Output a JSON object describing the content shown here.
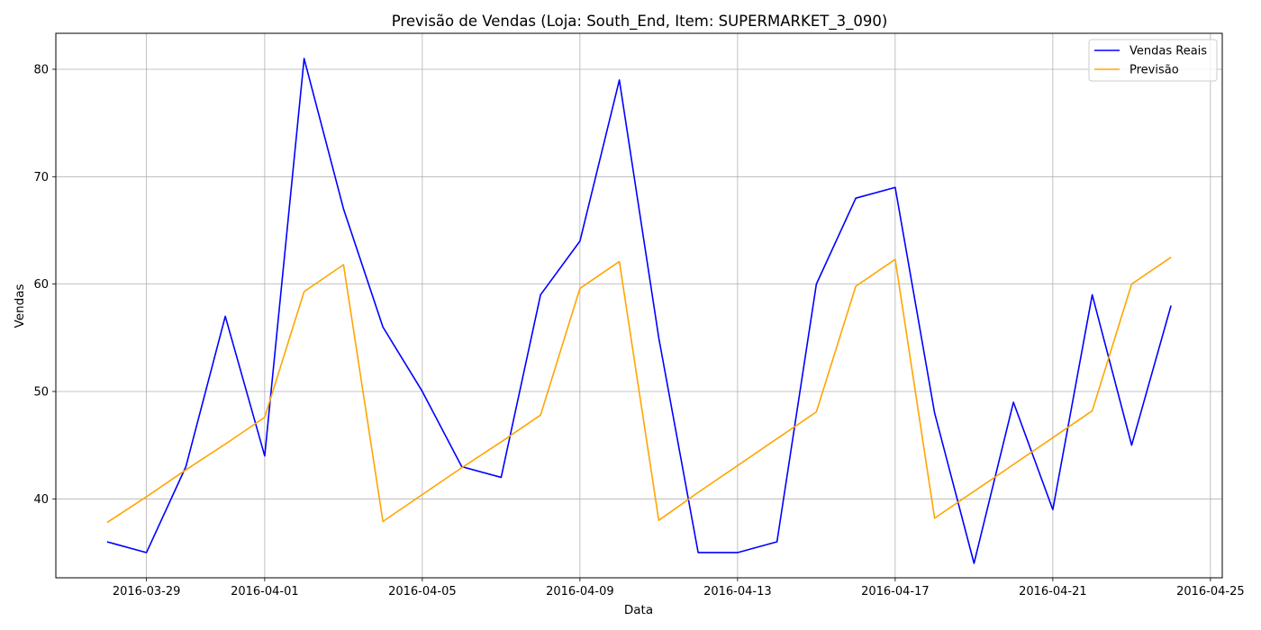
{
  "chart_data": {
    "type": "line",
    "title": "Previsão de Vendas (Loja: South_End, Item: SUPERMARKET_3_090)",
    "xlabel": "Data",
    "ylabel": "Vendas",
    "x": [
      "2016-03-28",
      "2016-03-29",
      "2016-03-30",
      "2016-03-31",
      "2016-04-01",
      "2016-04-02",
      "2016-04-03",
      "2016-04-04",
      "2016-04-05",
      "2016-04-06",
      "2016-04-07",
      "2016-04-08",
      "2016-04-09",
      "2016-04-10",
      "2016-04-11",
      "2016-04-12",
      "2016-04-13",
      "2016-04-14",
      "2016-04-15",
      "2016-04-16",
      "2016-04-17",
      "2016-04-18",
      "2016-04-19",
      "2016-04-20",
      "2016-04-21",
      "2016-04-22",
      "2016-04-23",
      "2016-04-24"
    ],
    "series": [
      {
        "name": "Vendas Reais",
        "color": "#0000ff",
        "values": [
          36,
          35,
          43,
          57,
          44,
          81,
          67,
          56,
          50,
          43,
          42,
          59,
          64,
          79,
          55,
          35,
          35,
          36,
          60,
          68,
          69,
          48,
          34,
          49,
          39,
          59,
          45,
          58
        ]
      },
      {
        "name": "Previsão",
        "color": "#ffa500",
        "values": [
          37.8,
          40.2,
          42.7,
          45.1,
          47.6,
          59.3,
          61.8,
          37.9,
          40.4,
          42.9,
          45.3,
          47.8,
          59.6,
          62.1,
          38.0,
          40.6,
          43.1,
          45.6,
          48.1,
          59.8,
          62.3,
          38.2,
          40.7,
          43.2,
          45.7,
          48.2,
          60.0,
          62.5
        ]
      }
    ],
    "xticks": [
      "2016-03-29",
      "2016-04-01",
      "2016-04-05",
      "2016-04-09",
      "2016-04-13",
      "2016-04-17",
      "2016-04-21",
      "2016-04-25"
    ],
    "yticks": [
      40,
      50,
      60,
      70,
      80
    ],
    "ylim": [
      32.65,
      83.35
    ],
    "xlim": [
      "2016-03-26T16:48",
      "2016-04-25T07:12"
    ],
    "grid": true,
    "legend_position": "top-right"
  }
}
